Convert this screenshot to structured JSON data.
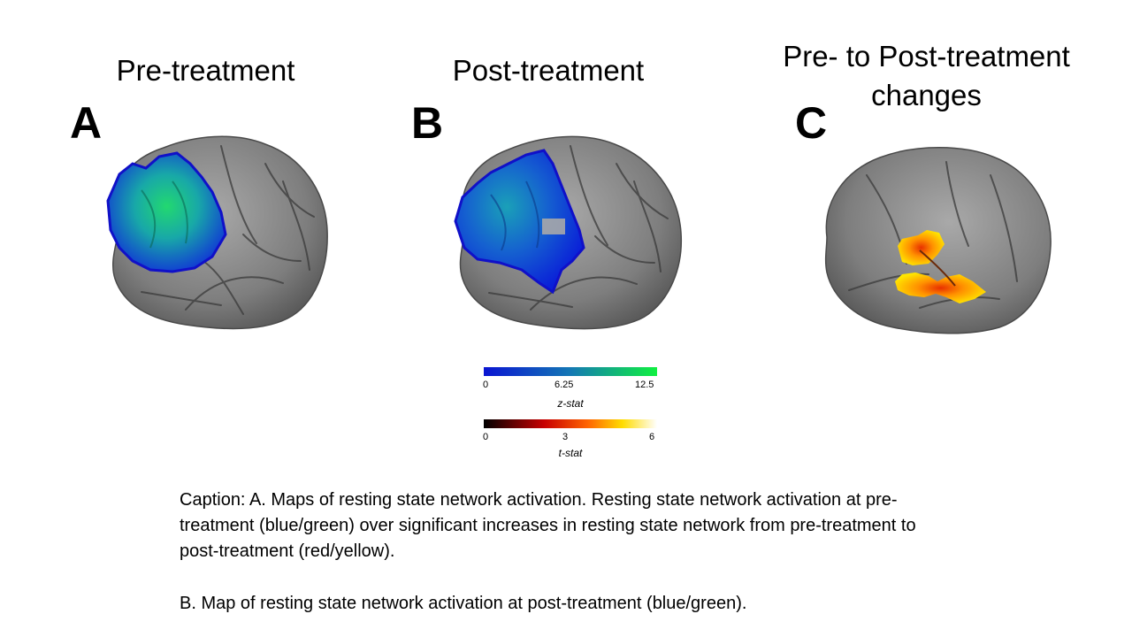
{
  "panels": [
    {
      "letter": "A",
      "title": "Pre-treatment"
    },
    {
      "letter": "B",
      "title": "Post-treatment"
    },
    {
      "letter": "C",
      "title_line1": "Pre- to Post-treatment",
      "title_line2": "changes"
    }
  ],
  "colorbars": [
    {
      "label": "z-stat",
      "ticks": [
        "0",
        "6.25",
        "12.5"
      ],
      "colors": [
        "#0a14d2",
        "#1478b4",
        "#10f040"
      ]
    },
    {
      "label": "t-stat",
      "ticks": [
        "0",
        "3",
        "6"
      ],
      "colors": [
        "#000000",
        "#c80000",
        "#ff6400",
        "#ffdc00",
        "#ffffff"
      ]
    }
  ],
  "caption": {
    "paragraph1": "Caption: A. Maps of resting state network activation. Resting state network activation at pre-treatment (blue/green) over significant increases in resting state network from pre-treatment to post-treatment (red/yellow).",
    "paragraph2": "B. Map of resting state network activation at post-treatment (blue/green)."
  }
}
